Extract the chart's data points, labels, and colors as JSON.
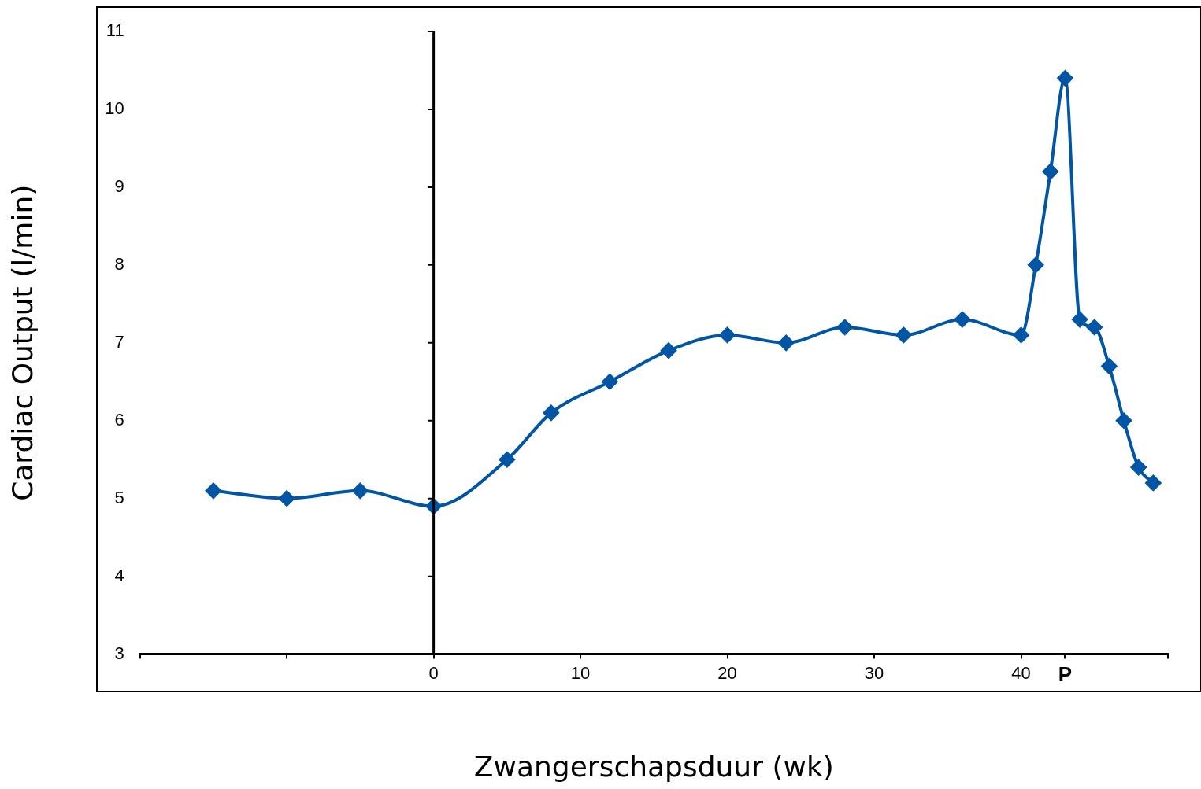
{
  "chart_data": {
    "type": "line",
    "xlabel": "Zwangerschapsduur (wk)",
    "ylabel": "Cardiac Output (l/min)",
    "x": [
      -15,
      -10,
      -5,
      0,
      5,
      8,
      12,
      16,
      20,
      24,
      28,
      32,
      36,
      40,
      41,
      42,
      43,
      44,
      45,
      46,
      47,
      48,
      49
    ],
    "series": [
      {
        "color": "#0055a5",
        "values": [
          5.1,
          5.0,
          5.1,
          4.9,
          5.5,
          6.1,
          6.5,
          6.9,
          7.1,
          7.0,
          7.2,
          7.1,
          7.3,
          7.1,
          8.0,
          9.2,
          10.4,
          7.3,
          7.2,
          6.7,
          6.0,
          5.4,
          5.2
        ]
      }
    ],
    "xlim": [
      -20,
      50
    ],
    "xticks": [
      {
        "value": -20,
        "label": null
      },
      {
        "value": -10,
        "label": null
      },
      0,
      10,
      20,
      30,
      40,
      {
        "value": 43,
        "label": "P"
      },
      {
        "value": 50,
        "label": null
      }
    ],
    "ylim": [
      3,
      11
    ],
    "yticks": [
      3,
      4,
      5,
      6,
      7,
      8,
      9,
      10,
      11
    ],
    "ref_lines": [
      {
        "axis": "x",
        "value": 0,
        "color": "#000000"
      }
    ],
    "marker": "diamond",
    "line_style": "solid",
    "grid": false,
    "legend": false
  }
}
